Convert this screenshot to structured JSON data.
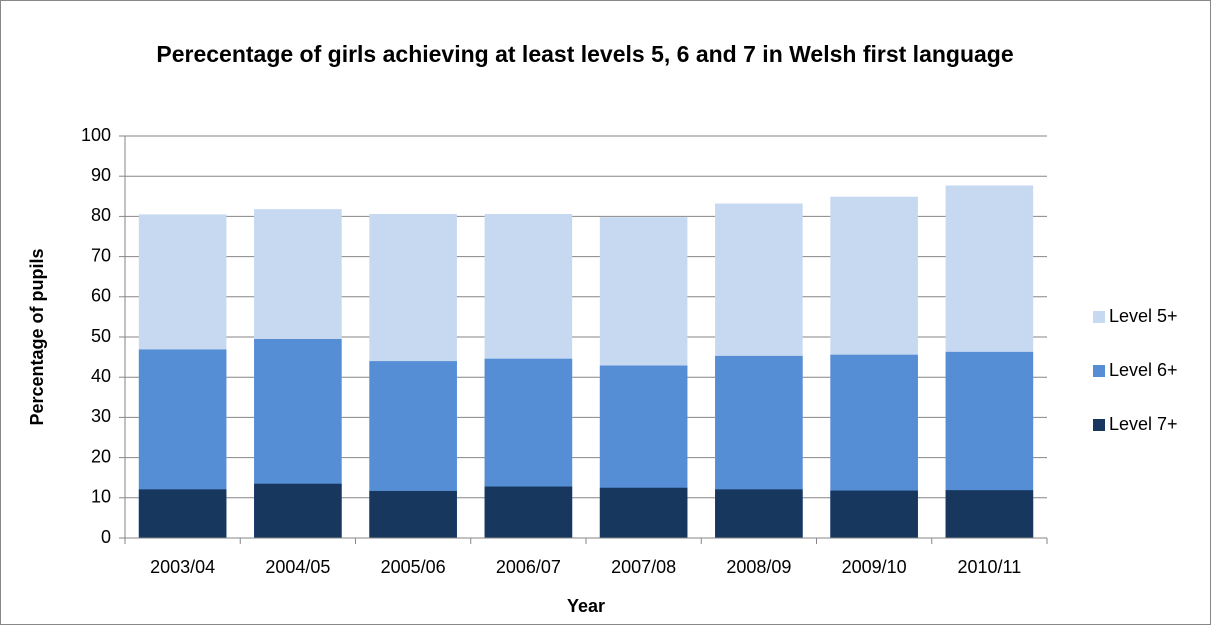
{
  "chart_data": {
    "type": "bar",
    "overlap": true,
    "title": "Perecentage of girls achieving at least levels 5, 6 and 7 in Welsh first language",
    "x_label": "Year",
    "y_label": "Percentage of pupils",
    "categories": [
      "2003/04",
      "2004/05",
      "2005/06",
      "2006/07",
      "2007/08",
      "2008/09",
      "2009/10",
      "2010/11"
    ],
    "series": [
      {
        "name": "Level 5+",
        "color": "#c6d9f1",
        "values": [
          80.5,
          81.8,
          80.6,
          80.6,
          79.8,
          83.2,
          84.9,
          87.7
        ]
      },
      {
        "name": "Level 6+",
        "color": "#558ed5",
        "values": [
          46.9,
          49.5,
          44.0,
          44.6,
          42.9,
          45.3,
          45.6,
          46.3
        ]
      },
      {
        "name": "Level 7+",
        "color": "#17375e",
        "values": [
          12.1,
          13.5,
          11.7,
          12.8,
          12.5,
          12.1,
          11.8,
          11.9
        ]
      }
    ],
    "ylim": [
      0,
      100
    ],
    "yticks": [
      0,
      10,
      20,
      30,
      40,
      50,
      60,
      70,
      80,
      90,
      100
    ],
    "grid": true,
    "legend": "right"
  }
}
